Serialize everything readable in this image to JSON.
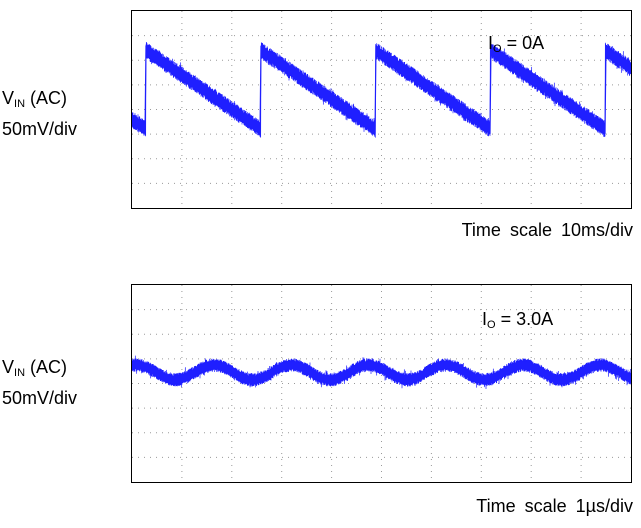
{
  "chart_data": [
    {
      "type": "line",
      "title": "",
      "ylabel": {
        "symbol": "V",
        "subscript": "IN",
        "suffix": "(AC)",
        "scale": "50mV/div"
      },
      "annotation": {
        "symbol": "I",
        "subscript": "O",
        "suffix": "= 0A"
      },
      "xlabel": "Time  scale  10ms/div",
      "x_divisions": 10,
      "y_divisions": 8,
      "xlim": [
        0,
        10
      ],
      "ylim": [
        -4,
        4
      ],
      "grid": "dotted",
      "waveform": "sawtooth",
      "period_div": 2.3,
      "first_jump_div": 0.28,
      "peak_div": 2.4,
      "trough_div": -0.8,
      "noise_band_div": 0.7,
      "series": [
        {
          "color": "#1f1fff"
        }
      ]
    },
    {
      "type": "line",
      "title": "",
      "ylabel": {
        "symbol": "V",
        "subscript": "IN",
        "suffix": "(AC)",
        "scale": "50mV/div"
      },
      "annotation": {
        "symbol": "I",
        "subscript": "O",
        "suffix": "= 3.0A"
      },
      "xlabel": "Time  scale  1µs/div",
      "x_divisions": 10,
      "y_divisions": 8,
      "xlim": [
        0,
        10
      ],
      "ylim": [
        -4,
        4
      ],
      "grid": "dotted",
      "waveform": "sine",
      "period_div": 1.55,
      "center_div": 0.45,
      "amplitude_div": 0.3,
      "noise_band_div": 0.55,
      "series": [
        {
          "color": "#1f1fff"
        }
      ]
    }
  ]
}
